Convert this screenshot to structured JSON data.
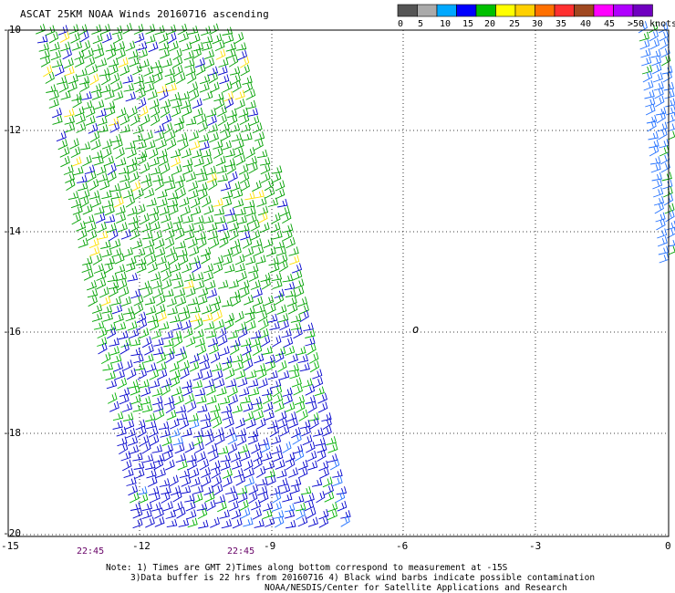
{
  "title": "ASCAT 25KM NOAA Winds 20160716 ascending",
  "legend": {
    "colors": [
      "#555555",
      "#aaaaaa",
      "#00a8ff",
      "#0000ff",
      "#00c000",
      "#ffff00",
      "#ffd000",
      "#ff7000",
      "#ff3030",
      "#a04820",
      "#ff00ff",
      "#b000ff",
      "#7000c0"
    ],
    "labels": [
      "0",
      "5",
      "10",
      "15",
      "20",
      "25",
      "30",
      "35",
      "40",
      "45",
      ">50 knots"
    ]
  },
  "axes": {
    "y_labels": [
      "-10",
      "-12",
      "-14",
      "-16",
      "-18",
      "-20"
    ],
    "x_labels": [
      "-15",
      "-12",
      "-9",
      "-6",
      "-3",
      "0"
    ]
  },
  "times": [
    "22:45",
    "22:45"
  ],
  "marker": "o",
  "notes": [
    "Note: 1) Times are GMT 2)Times along bottom correspond to measurement at -15S",
    "3)Data buffer is 22 hrs from 20160716 4) Black wind barbs indicate possible contamination",
    "NOAA/NESDIS/Center for Satellite Applications and Research"
  ]
}
